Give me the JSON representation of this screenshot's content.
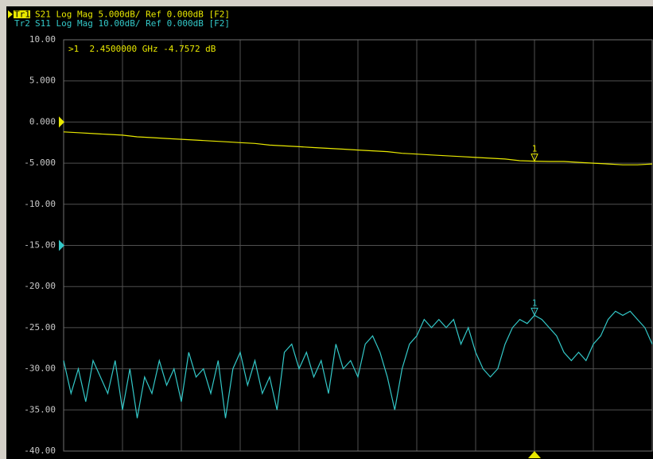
{
  "chart_data": {
    "type": "line",
    "header": [
      "S21 Log Mag 5.000dB/ Ref 0.000dB [F2]",
      "S11 Log Mag 10.00dB/ Ref 0.000dB [F2]"
    ],
    "marker_readout": ">1  2.4500000 GHz -4.7572 dB",
    "marker_label": "1",
    "series": [
      {
        "name": "Tr1",
        "color": "#e8e800",
        "values": [
          -1.2,
          -1.3,
          -1.4,
          -1.5,
          -1.6,
          -1.8,
          -1.9,
          -2.0,
          -2.1,
          -2.2,
          -2.3,
          -2.4,
          -2.5,
          -2.6,
          -2.8,
          -2.9,
          -3.0,
          -3.1,
          -3.2,
          -3.3,
          -3.4,
          -3.5,
          -3.6,
          -3.8,
          -3.9,
          -4.0,
          -4.1,
          -4.2,
          -4.3,
          -4.4,
          -4.5,
          -4.7,
          -4.76,
          -4.8,
          -4.8,
          -4.9,
          -5.0,
          -5.1,
          -5.2,
          -5.2,
          -5.1
        ]
      },
      {
        "name": "Tr2",
        "color": "#33c8c8",
        "values": [
          -29,
          -33,
          -30,
          -34,
          -29,
          -31,
          -33,
          -29,
          -35,
          -30,
          -36,
          -31,
          -33,
          -29,
          -32,
          -30,
          -34,
          -28,
          -31,
          -30,
          -33,
          -29,
          -36,
          -30,
          -28,
          -32,
          -29,
          -33,
          -31,
          -35,
          -28,
          -27,
          -30,
          -28,
          -31,
          -29,
          -33,
          -27,
          -30,
          -29,
          -31,
          -27,
          -26,
          -28,
          -31,
          -35,
          -30,
          -27,
          -26,
          -24,
          -25,
          -24,
          -25,
          -24,
          -27,
          -25,
          -28,
          -30,
          -31,
          -30,
          -27,
          -25,
          -24,
          -24.5,
          -23.5,
          -24,
          -25,
          -26,
          -28,
          -29,
          -28,
          -29,
          -27,
          -26,
          -24,
          -23,
          -23.5,
          -23,
          -24,
          -25,
          -27
        ]
      }
    ],
    "ylim": [
      -40,
      10
    ],
    "yticks": [
      {
        "value": 10,
        "label": "10.00"
      },
      {
        "value": 5,
        "label": "5.000"
      },
      {
        "value": 0,
        "label": "0.000"
      },
      {
        "value": -5,
        "label": "-5.000"
      },
      {
        "value": -10,
        "label": "-10.00"
      },
      {
        "value": -15,
        "label": "-15.00"
      },
      {
        "value": -20,
        "label": "-20.00"
      },
      {
        "value": -25,
        "label": "-25.00"
      },
      {
        "value": -30,
        "label": "-30.00"
      },
      {
        "value": -35,
        "label": "-35.00"
      },
      {
        "value": -40,
        "label": "-40.00"
      }
    ],
    "grid": true
  }
}
